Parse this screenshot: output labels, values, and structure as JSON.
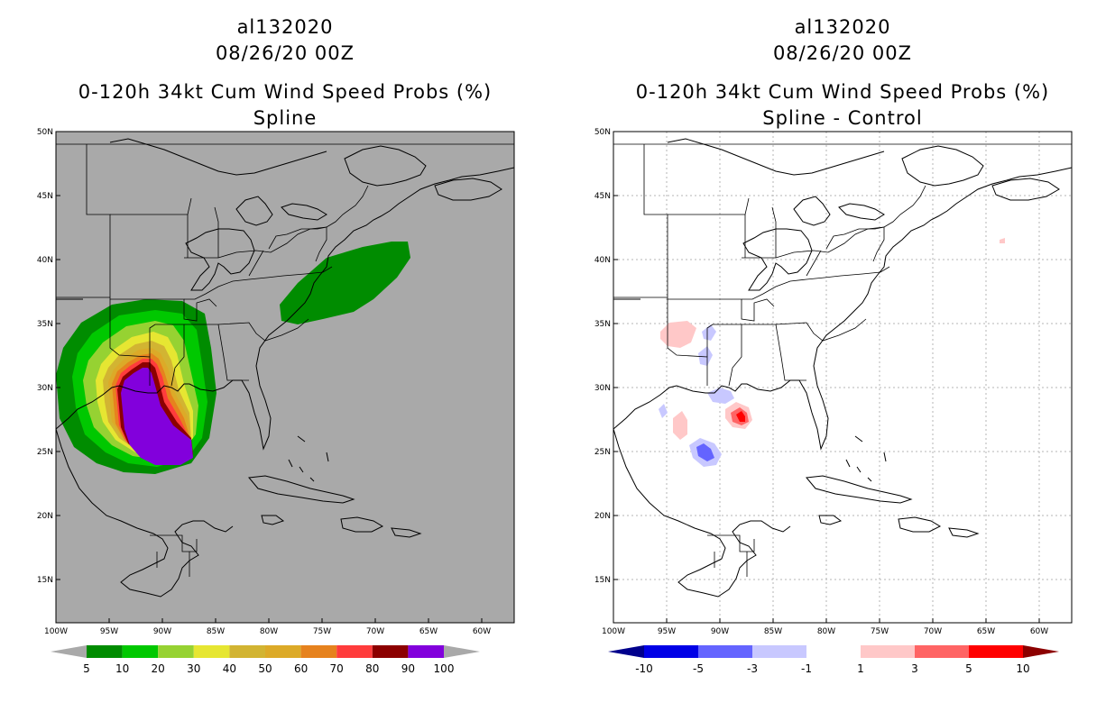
{
  "left_panel": {
    "storm_id": "al132020",
    "datetime": "08/26/20 00Z",
    "title": "0-120h 34kt Cum Wind Speed Probs (%)",
    "subtitle": "Spline",
    "background": "#a9a9a9",
    "colorbar": {
      "colors": [
        "#008c00",
        "#00c800",
        "#96d232",
        "#e6e632",
        "#d2b432",
        "#dcaa28",
        "#e6821e",
        "#ff3c3c",
        "#8c0000",
        "#8200dc"
      ],
      "labels": [
        "5",
        "10",
        "20",
        "30",
        "40",
        "50",
        "60",
        "70",
        "80",
        "90",
        "100"
      ],
      "end_color": "#a9a9a9"
    }
  },
  "right_panel": {
    "storm_id": "al132020",
    "datetime": "08/26/20 00Z",
    "title": "0-120h 34kt Cum Wind Speed Probs (%)",
    "subtitle": "Spline - Control",
    "background": "#ffffff",
    "colorbar": {
      "colors": [
        "#0000e6",
        "#6464ff",
        "#c8c8ff",
        "#ffffff",
        "#ffc8c8",
        "#ff6464",
        "#ff0000"
      ],
      "labels": [
        "-10",
        "-5",
        "-3",
        "-1",
        "1",
        "3",
        "5",
        "10"
      ],
      "low_end_color": "#00008c",
      "high_end_color": "#8c0000"
    }
  },
  "axes": {
    "lat_labels": [
      "50N",
      "45N",
      "40N",
      "35N",
      "30N",
      "25N",
      "20N",
      "15N"
    ],
    "lon_labels": [
      "100W",
      "95W",
      "90W",
      "85W",
      "80W",
      "75W",
      "70W",
      "65W",
      "60W"
    ]
  }
}
